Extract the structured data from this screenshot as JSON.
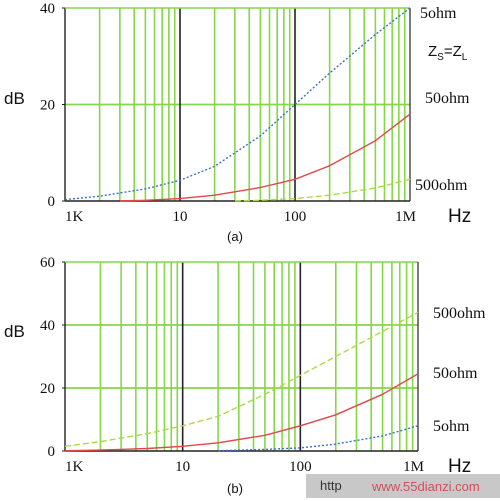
{
  "colors": {
    "minor_grid": "#86d64a",
    "major_grid": "#222222",
    "frame": "#222222",
    "series_5ohm": "#3a6fd0",
    "series_50ohm": "#e04848",
    "series_500ohm": "#a8dc4a",
    "watermark_box": "#c8c8c8",
    "watermark_text": "#d0505a"
  },
  "chart_data": [
    {
      "type": "line",
      "x_scale": "log",
      "xlim": [
        1000,
        1000000
      ],
      "ylim": [
        0,
        40
      ],
      "grid": true,
      "x_tick_labels": [
        "1K",
        "10",
        "100",
        "1M"
      ],
      "y_ticks": [
        0,
        20,
        40
      ],
      "xlabel": "Hz",
      "ylabel": "dB",
      "subtitle": "(a)",
      "annotation": "ZS=ZL",
      "annotation_main": "Z",
      "annotation_sub_s": "S",
      "annotation_eq": "=Z",
      "annotation_sub_l": "L",
      "series": [
        {
          "name": "5ohm",
          "style": "dotted",
          "color_key": "series_5ohm",
          "x": [
            1000,
            2000,
            5000,
            10000,
            20000,
            50000,
            100000,
            200000,
            500000,
            1000000
          ],
          "y": [
            0.3,
            1.0,
            2.5,
            4.3,
            7.2,
            13.5,
            20,
            26.5,
            34.5,
            40
          ]
        },
        {
          "name": "50ohm",
          "style": "solid",
          "color_key": "series_50ohm",
          "x": [
            3000,
            5000,
            10000,
            20000,
            50000,
            100000,
            200000,
            500000,
            1000000
          ],
          "y": [
            0.05,
            0.15,
            0.5,
            1.2,
            2.8,
            4.5,
            7.3,
            12.5,
            18
          ]
        },
        {
          "name": "500ohm",
          "style": "dashed",
          "color_key": "series_500ohm",
          "x": [
            30000,
            50000,
            100000,
            200000,
            500000,
            1000000
          ],
          "y": [
            0.05,
            0.15,
            0.5,
            1.2,
            2.7,
            4.5
          ]
        }
      ]
    },
    {
      "type": "line",
      "x_scale": "log",
      "xlim": [
        1000,
        1000000
      ],
      "ylim": [
        0,
        60
      ],
      "grid": true,
      "x_tick_labels": [
        "1K",
        "10",
        "100",
        "1M"
      ],
      "y_ticks": [
        0,
        20,
        40,
        60
      ],
      "xlabel": "Hz",
      "ylabel": "dB",
      "subtitle": "(b)",
      "series": [
        {
          "name": "500ohm",
          "style": "dashed",
          "color_key": "series_500ohm",
          "x": [
            1000,
            2000,
            5000,
            10000,
            20000,
            50000,
            100000,
            200000,
            500000,
            1000000
          ],
          "y": [
            1.5,
            3,
            5.5,
            8,
            11,
            18,
            24,
            30,
            38,
            44
          ]
        },
        {
          "name": "50ohm",
          "style": "solid",
          "color_key": "series_50ohm",
          "x": [
            1000,
            2000,
            5000,
            10000,
            20000,
            50000,
            100000,
            200000,
            500000,
            1000000
          ],
          "y": [
            0.1,
            0.3,
            0.8,
            1.5,
            2.6,
            5,
            8,
            11.5,
            18,
            24.5
          ]
        },
        {
          "name": "5ohm",
          "style": "dotted",
          "color_key": "series_5ohm",
          "x": [
            20000,
            50000,
            100000,
            200000,
            500000,
            1000000
          ],
          "y": [
            0.1,
            0.5,
            1.0,
            2.2,
            4.8,
            8
          ]
        }
      ]
    }
  ],
  "watermark": {
    "left": "http",
    "right": "www.55dianzi.com"
  }
}
